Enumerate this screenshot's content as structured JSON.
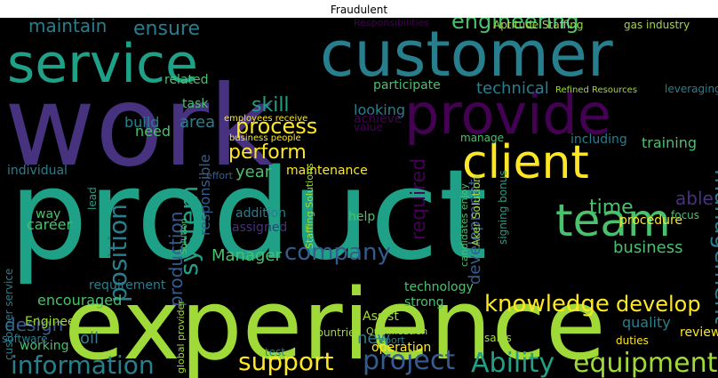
{
  "chart_data": {
    "type": "wordcloud",
    "title": "Fraudulent",
    "background": "#000000",
    "colormap": [
      "#440154",
      "#46327e",
      "#365c8d",
      "#277f8e",
      "#1fa187",
      "#4ac16d",
      "#a0da39",
      "#fde725"
    ],
    "words": [
      {
        "text": "product",
        "weight": 1.0,
        "color": "#1fa187"
      },
      {
        "text": "experience",
        "weight": 0.92,
        "color": "#a0da39"
      },
      {
        "text": "work",
        "weight": 0.85,
        "color": "#46327e"
      },
      {
        "text": "customer",
        "weight": 0.7,
        "color": "#277f8e"
      },
      {
        "text": "service",
        "weight": 0.62,
        "color": "#1fa187"
      },
      {
        "text": "provide",
        "weight": 0.6,
        "color": "#440154"
      },
      {
        "text": "client",
        "weight": 0.45,
        "color": "#fde725"
      },
      {
        "text": "team",
        "weight": 0.38,
        "color": "#4ac16d"
      },
      {
        "text": "information",
        "weight": 0.3,
        "color": "#277f8e"
      },
      {
        "text": "project",
        "weight": 0.28,
        "color": "#365c8d"
      },
      {
        "text": "Ability",
        "weight": 0.28,
        "color": "#1fa187"
      },
      {
        "text": "equipment",
        "weight": 0.28,
        "color": "#a0da39"
      },
      {
        "text": "support",
        "weight": 0.27,
        "color": "#fde725"
      },
      {
        "text": "knowledge",
        "weight": 0.26,
        "color": "#fde725"
      },
      {
        "text": "system",
        "weight": 0.26,
        "color": "#1fa187"
      },
      {
        "text": "position",
        "weight": 0.25,
        "color": "#277f8e"
      },
      {
        "text": "company",
        "weight": 0.22,
        "color": "#365c8d"
      },
      {
        "text": "engineering",
        "weight": 0.21,
        "color": "#4ac16d"
      },
      {
        "text": "management",
        "weight": 0.21,
        "color": "#277f8e"
      },
      {
        "text": "develop",
        "weight": 0.2,
        "color": "#fde725"
      },
      {
        "text": "skill",
        "weight": 0.2,
        "color": "#1fa187"
      },
      {
        "text": "maintain",
        "weight": 0.18,
        "color": "#277f8e"
      },
      {
        "text": "ensure",
        "weight": 0.18,
        "color": "#277f8e"
      },
      {
        "text": "process",
        "weight": 0.18,
        "color": "#fde725"
      },
      {
        "text": "perform",
        "weight": 0.17,
        "color": "#fde725"
      },
      {
        "text": "time",
        "weight": 0.17,
        "color": "#4ac16d"
      },
      {
        "text": "design",
        "weight": 0.16,
        "color": "#365c8d"
      },
      {
        "text": "business",
        "weight": 0.16,
        "color": "#4ac16d"
      },
      {
        "text": "production",
        "weight": 0.16,
        "color": "#365c8d"
      },
      {
        "text": "technical",
        "weight": 0.15,
        "color": "#277f8e"
      },
      {
        "text": "development",
        "weight": 0.15,
        "color": "#365c8d"
      },
      {
        "text": "required",
        "weight": 0.15,
        "color": "#440154"
      },
      {
        "text": "Manager",
        "weight": 0.15,
        "color": "#4ac16d"
      },
      {
        "text": "new",
        "weight": 0.15,
        "color": "#277f8e"
      },
      {
        "text": "year",
        "weight": 0.14,
        "color": "#4ac16d"
      },
      {
        "text": "area",
        "weight": 0.14,
        "color": "#277f8e"
      },
      {
        "text": "able",
        "weight": 0.14,
        "color": "#46327e"
      },
      {
        "text": "oil",
        "weight": 0.14,
        "color": "#277f8e"
      },
      {
        "text": "training",
        "weight": 0.14,
        "color": "#4ac16d"
      },
      {
        "text": "looking",
        "weight": 0.13,
        "color": "#277f8e"
      },
      {
        "text": "build",
        "weight": 0.13,
        "color": "#277f8e"
      },
      {
        "text": "need",
        "weight": 0.13,
        "color": "#4ac16d"
      },
      {
        "text": "responsible",
        "weight": 0.13,
        "color": "#365c8d"
      },
      {
        "text": "technology",
        "weight": 0.12,
        "color": "#4ac16d"
      },
      {
        "text": "encouraged",
        "weight": 0.12,
        "color": "#4ac16d"
      },
      {
        "text": "career",
        "weight": 0.12,
        "color": "#4ac16d"
      },
      {
        "text": "help",
        "weight": 0.12,
        "color": "#4ac16d"
      },
      {
        "text": "quality",
        "weight": 0.12,
        "color": "#277f8e"
      },
      {
        "text": "review",
        "weight": 0.12,
        "color": "#fde725"
      },
      {
        "text": "maintenance",
        "weight": 0.11,
        "color": "#fde725"
      },
      {
        "text": "requirement",
        "weight": 0.11,
        "color": "#277f8e"
      },
      {
        "text": "participate",
        "weight": 0.11,
        "color": "#4ac16d"
      },
      {
        "text": "achieve",
        "weight": 0.11,
        "color": "#440154"
      },
      {
        "text": "task",
        "weight": 0.1,
        "color": "#4ac16d"
      },
      {
        "text": "related",
        "weight": 0.1,
        "color": "#4ac16d"
      },
      {
        "text": "procedure",
        "weight": 0.1,
        "color": "#fde725"
      },
      {
        "text": "focus",
        "weight": 0.1,
        "color": "#4ac16d"
      },
      {
        "text": "including",
        "weight": 0.1,
        "color": "#277f8e"
      },
      {
        "text": "individual",
        "weight": 0.1,
        "color": "#277f8e"
      },
      {
        "text": "addition",
        "weight": 0.1,
        "color": "#277f8e"
      },
      {
        "text": "assigned",
        "weight": 0.1,
        "color": "#46327e"
      },
      {
        "text": "way",
        "weight": 0.1,
        "color": "#4ac16d"
      },
      {
        "text": "strong",
        "weight": 0.1,
        "color": "#4ac16d"
      },
      {
        "text": "duties",
        "weight": 0.1,
        "color": "#fde725"
      },
      {
        "text": "manage",
        "weight": 0.1,
        "color": "#4ac16d"
      },
      {
        "text": "Assist",
        "weight": 0.1,
        "color": "#a0da39"
      },
      {
        "text": "operation",
        "weight": 0.1,
        "color": "#fde725"
      },
      {
        "text": "working",
        "weight": 0.1,
        "color": "#4ac16d"
      },
      {
        "text": "leveraging",
        "weight": 0.1,
        "color": "#277f8e"
      },
      {
        "text": "value",
        "weight": 0.09,
        "color": "#440154"
      },
      {
        "text": "Engineer",
        "weight": 0.09,
        "color": "#a0da39"
      },
      {
        "text": "sales",
        "weight": 0.09,
        "color": "#a0da39"
      },
      {
        "text": "software",
        "weight": 0.09,
        "color": "#277f8e"
      },
      {
        "text": "test",
        "weight": 0.09,
        "color": "#277f8e"
      },
      {
        "text": "countries",
        "weight": 0.09,
        "color": "#a0da39"
      },
      {
        "text": "Aptitude Staffing",
        "weight": 0.09,
        "color": "#a0da39"
      },
      {
        "text": "gas industry",
        "weight": 0.09,
        "color": "#a0da39"
      },
      {
        "text": "Responsibilities",
        "weight": 0.09,
        "color": "#440154"
      },
      {
        "text": "customer service",
        "weight": 0.09,
        "color": "#277f8e"
      },
      {
        "text": "Aker Solution",
        "weight": 0.09,
        "color": "#a0da39"
      },
      {
        "text": "Refined Resources",
        "weight": 0.08,
        "color": "#a0da39"
      },
      {
        "text": "employees receive",
        "weight": 0.08,
        "color": "#fde725"
      },
      {
        "text": "signing bonus",
        "weight": 0.08,
        "color": "#1fa187"
      },
      {
        "text": "candidates enjoy",
        "weight": 0.08,
        "color": "#4ac16d"
      },
      {
        "text": "Qualification",
        "weight": 0.08,
        "color": "#a0da39"
      },
      {
        "text": "Staffing Solutions",
        "weight": 0.08,
        "color": "#a0da39"
      },
      {
        "text": "lead",
        "weight": 0.08,
        "color": "#1fa187"
      },
      {
        "text": "report",
        "weight": 0.08,
        "color": "#277f8e"
      },
      {
        "text": "global provider",
        "weight": 0.08,
        "color": "#a0da39"
      },
      {
        "text": "Solution",
        "weight": 0.08,
        "color": "#4ac16d"
      },
      {
        "text": "effort",
        "weight": 0.08,
        "color": "#365c8d"
      },
      {
        "text": "business people",
        "weight": 0.08,
        "color": "#fde725"
      }
    ]
  }
}
